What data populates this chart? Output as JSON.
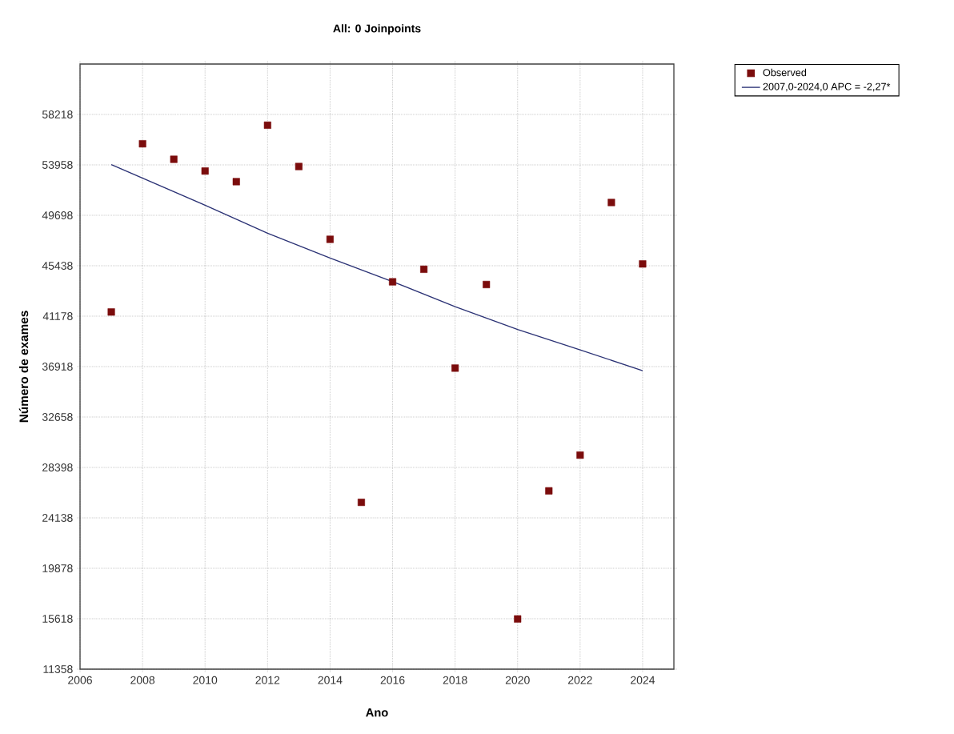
{
  "chart_data": {
    "type": "scatter",
    "title": "All: 0 Joinpoints",
    "xlabel": "Ano",
    "ylabel": "Número de exames",
    "x": [
      2007,
      2008,
      2009,
      2010,
      2011,
      2012,
      2013,
      2014,
      2015,
      2016,
      2017,
      2018,
      2019,
      2020,
      2021,
      2022,
      2023,
      2024
    ],
    "series": [
      {
        "name": "Observed",
        "type": "scatter",
        "marker": "square",
        "color": "#7b0c0c",
        "values": [
          41530,
          55740,
          54430,
          53440,
          52540,
          57310,
          53820,
          47670,
          25450,
          44080,
          45140,
          36790,
          43850,
          15600,
          26420,
          29440,
          50780,
          45590
        ]
      },
      {
        "name": "2007,0-2024,0 APC  = -2,27*",
        "type": "line",
        "marker": "none",
        "line_style": "solid",
        "color": "#2b3275",
        "x": [
          2007,
          2010,
          2012,
          2014,
          2016,
          2018,
          2020,
          2022,
          2024
        ],
        "values": [
          53980,
          50550,
          48180,
          46080,
          44100,
          41980,
          40060,
          38330,
          36570
        ]
      }
    ],
    "xlim": [
      2006,
      2025
    ],
    "ylim": [
      11358,
      62478
    ],
    "xticks": [
      2006,
      2008,
      2010,
      2012,
      2014,
      2016,
      2018,
      2020,
      2022,
      2024
    ],
    "yticks": [
      11358,
      15618,
      19878,
      24138,
      28398,
      32658,
      36918,
      41178,
      45438,
      49698,
      53958,
      58218
    ],
    "grid": true,
    "legend": "top right"
  }
}
